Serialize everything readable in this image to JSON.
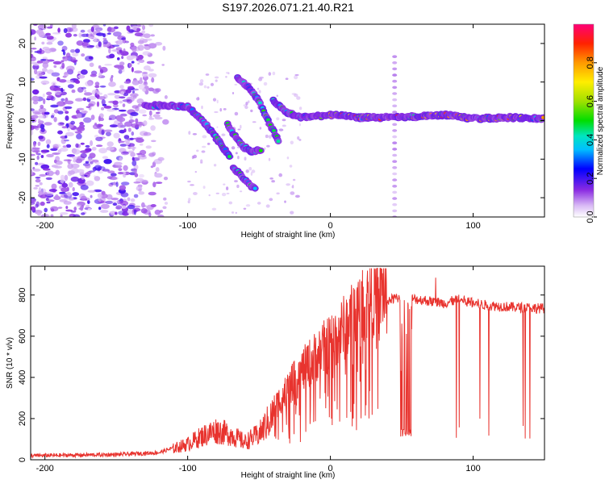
{
  "chart_data": [
    {
      "type": "heatmap",
      "title": "S197.2026.071.21.40.R21",
      "xlabel": "Height of straight line (km)",
      "ylabel": "Frequency (Hz)",
      "xlim": [
        -210,
        150
      ],
      "ylim": [
        -25,
        25
      ],
      "xticks": [
        -200,
        -100,
        0,
        100
      ],
      "yticks": [
        -20,
        -10,
        0,
        10,
        20
      ],
      "colorbar": {
        "label": "Normalized spectral amplitude",
        "range": [
          0,
          1
        ],
        "ticks": [
          "0.0",
          "0.2",
          "0.4",
          "0.6",
          "0.8"
        ]
      },
      "ridges": [
        {
          "name": "main trace",
          "points": [
            [
              -130,
              3.8
            ],
            [
              -115,
              4.0
            ],
            [
              -100,
              3.5
            ],
            [
              -92,
              1.0
            ],
            [
              -85,
              -2.0
            ],
            [
              -80,
              -4.5
            ],
            [
              -75,
              -7.0
            ],
            [
              -70,
              -10.0
            ]
          ]
        },
        {
          "name": "upper branch",
          "points": [
            [
              -65,
              11.0
            ],
            [
              -60,
              9.5
            ],
            [
              -55,
              7.5
            ],
            [
              -50,
              5.0
            ],
            [
              -46,
              2.0
            ],
            [
              -42,
              -1.5
            ],
            [
              -38,
              -4.0
            ],
            [
              -36,
              -5.5
            ]
          ]
        },
        {
          "name": "middle branch",
          "points": [
            [
              -72,
              -1.0
            ],
            [
              -66,
              -4.5
            ],
            [
              -60,
              -7.0
            ],
            [
              -55,
              -8.0
            ],
            [
              -48,
              -7.5
            ]
          ]
        },
        {
          "name": "lower branch",
          "points": [
            [
              -68,
              -12.0
            ],
            [
              -60,
              -15.5
            ],
            [
              -52,
              -18.0
            ]
          ]
        },
        {
          "name": "steady trace",
          "points": [
            [
              -40,
              5.0
            ],
            [
              -30,
              2.0
            ],
            [
              -20,
              0.8
            ],
            [
              0,
              1.5
            ],
            [
              20,
              0.8
            ],
            [
              50,
              0.8
            ],
            [
              80,
              1.5
            ],
            [
              100,
              0.5
            ],
            [
              125,
              0.8
            ],
            [
              150,
              0.5
            ]
          ]
        }
      ],
      "vertical_line": {
        "x": 45,
        "range": [
          -25,
          17
        ]
      }
    },
    {
      "type": "line",
      "title": "",
      "xlabel": "Height of straight line (km)",
      "ylabel": "SNR (10 * v/v)",
      "xlim": [
        -210,
        150
      ],
      "ylim": [
        0,
        940
      ],
      "xticks": [
        -200,
        -100,
        0,
        100
      ],
      "yticks": [
        0,
        200,
        400,
        600,
        800
      ],
      "series": [
        {
          "name": "SNR",
          "color": "#e8332e",
          "envelope": [
            [
              -210,
              20
            ],
            [
              -150,
              25
            ],
            [
              -120,
              35
            ],
            [
              -100,
              80
            ],
            [
              -90,
              120
            ],
            [
              -80,
              150
            ],
            [
              -70,
              130
            ],
            [
              -60,
              90
            ],
            [
              -50,
              130
            ],
            [
              -40,
              230
            ],
            [
              -30,
              320
            ],
            [
              -20,
              400
            ],
            [
              -10,
              470
            ],
            [
              0,
              530
            ],
            [
              10,
              600
            ],
            [
              20,
              680
            ],
            [
              30,
              740
            ],
            [
              40,
              775
            ],
            [
              50,
              790
            ],
            [
              60,
              780
            ],
            [
              70,
              770
            ],
            [
              80,
              760
            ],
            [
              90,
              780
            ],
            [
              100,
              760
            ],
            [
              110,
              750
            ],
            [
              120,
              745
            ],
            [
              130,
              740
            ],
            [
              150,
              735
            ]
          ],
          "dropouts": [
            [
              49,
              57,
              120
            ]
          ]
        }
      ]
    }
  ]
}
